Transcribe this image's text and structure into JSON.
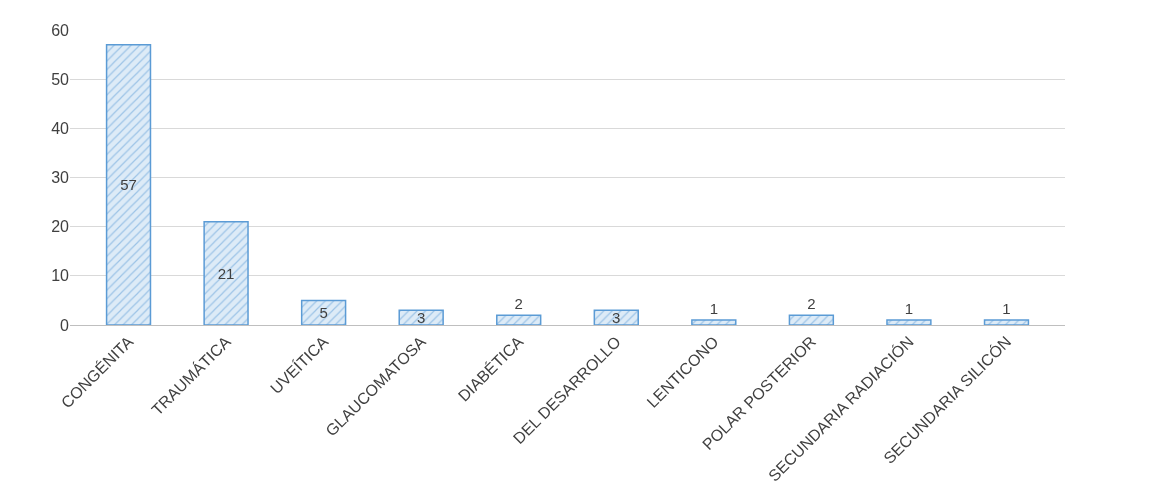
{
  "chart_data": {
    "type": "bar",
    "categories": [
      "CONGÉNITA",
      "TRAUMÁTICA",
      "UVEÍTICA",
      "GLAUCOMATOSA",
      "DIABÉTICA",
      "DEL DESARROLLO",
      "LENTICONO",
      "POLAR POSTERIOR",
      "SECUNDARIA RADIACIÓN",
      "SECUNDARIA SILICÓN"
    ],
    "values": [
      57,
      21,
      5,
      3,
      2,
      3,
      1,
      2,
      1,
      1
    ],
    "color": "#5b9bd5",
    "ylim": [
      0,
      60
    ],
    "yticks": [
      0,
      10,
      20,
      30,
      40,
      50,
      60
    ],
    "grid": "y",
    "data_labels": true
  }
}
